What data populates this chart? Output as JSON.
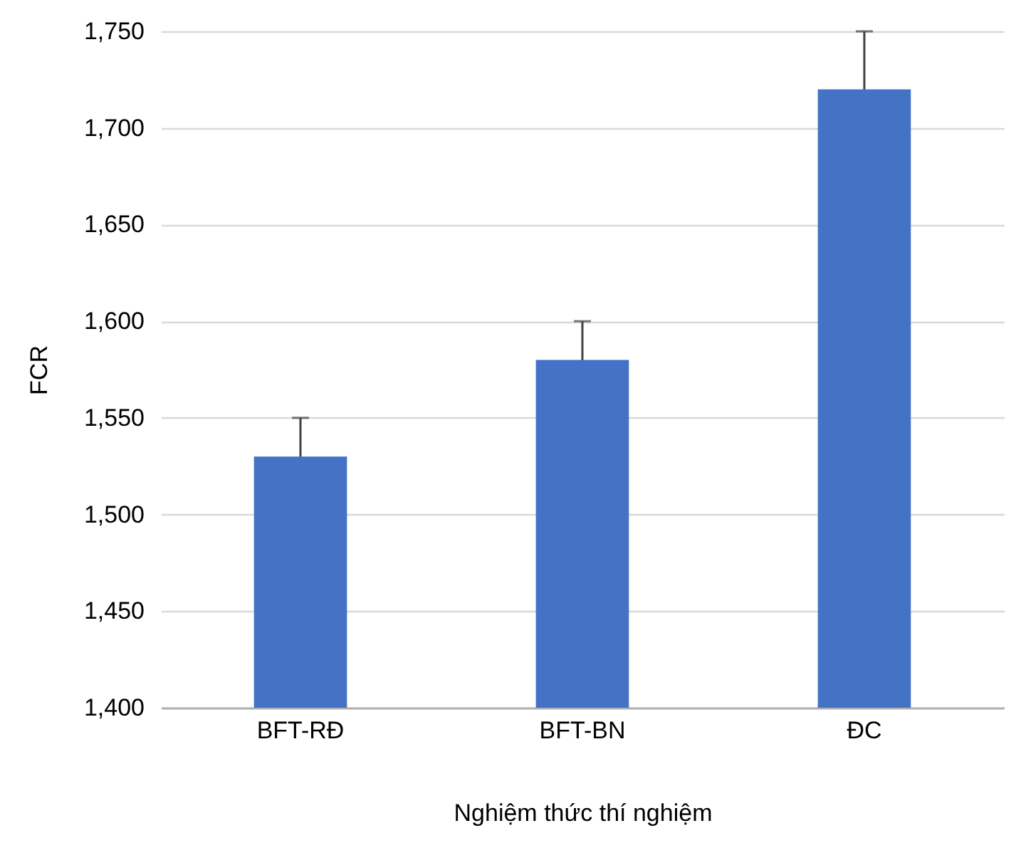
{
  "chart_data": {
    "type": "bar",
    "xlabel": "Nghiệm thức thí nghiệm",
    "ylabel": "FCR",
    "categories": [
      "BFT-RĐ",
      "BFT-BN",
      "ĐC"
    ],
    "values": [
      1530,
      1580,
      1720
    ],
    "errors": [
      20,
      20,
      30
    ],
    "color": "#4472c4",
    "ylim": [
      1400,
      1750
    ],
    "yticks": [
      {
        "value": 1400,
        "label": "1,400"
      },
      {
        "value": 1450,
        "label": "1,450"
      },
      {
        "value": 1500,
        "label": "1,500"
      },
      {
        "value": 1550,
        "label": "1,550"
      },
      {
        "value": 1600,
        "label": "1,600"
      },
      {
        "value": 1650,
        "label": "1,650"
      },
      {
        "value": 1700,
        "label": "1,700"
      },
      {
        "value": 1750,
        "label": "1,750"
      }
    ],
    "grid": "y"
  }
}
